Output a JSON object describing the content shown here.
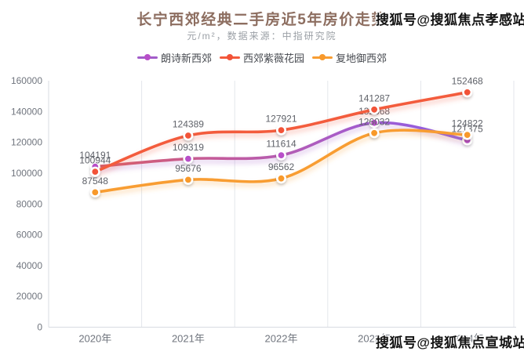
{
  "title": "长宁西郊经典二手房近5年房价走势",
  "subtitle": "元/m²，数据来源：中指研究院",
  "watermarks": {
    "top": "搜狐号@搜狐焦点孝感站",
    "bottom": "搜狐号@搜狐焦点宣城站"
  },
  "colors": {
    "title": "#8d6e60",
    "subtitle": "#9ba0a6",
    "axis_text": "#70757e",
    "data_label": "#5f6269",
    "grid_line": "#e3e6eb",
    "axis_line": "#d8dbe1"
  },
  "chart_data": {
    "type": "line",
    "title": "长宁西郊经典二手房近5年房价走势",
    "unit_note": "元/m²，数据来源：中指研究院",
    "categories": [
      "2020年",
      "2021年",
      "2022年",
      "2023年",
      "2024年"
    ],
    "series": [
      {
        "name": "朗诗新西郊",
        "color": "#a25cc9",
        "line_gradient": [
          "#d75f68",
          "#c35a9b",
          "#a75cc9",
          "#8a5ce8"
        ],
        "dot_color": "#b84fc9",
        "values": [
          104191,
          109319,
          111614,
          132668,
          121375
        ]
      },
      {
        "name": "西郊紫薇花园",
        "color": "#f35b3d",
        "line_gradient": [
          "#f35b3d",
          "#f35b3d"
        ],
        "dot_color": "#f25238",
        "values": [
          100944,
          124389,
          127921,
          141287,
          152468
        ]
      },
      {
        "name": "复地御西郊",
        "color": "#f89d33",
        "line_gradient": [
          "#f89d33",
          "#f89d33"
        ],
        "dot_color": "#f8992b",
        "values": [
          87548,
          95676,
          96562,
          126032,
          124822
        ]
      }
    ],
    "ylim": [
      0,
      160000
    ],
    "yticks": [
      0,
      20000,
      40000,
      60000,
      80000,
      100000,
      120000,
      140000,
      160000
    ],
    "legend_position": "top",
    "grid": "vertical-split-lines-only",
    "smooth": true,
    "data_labels_shown": true
  }
}
